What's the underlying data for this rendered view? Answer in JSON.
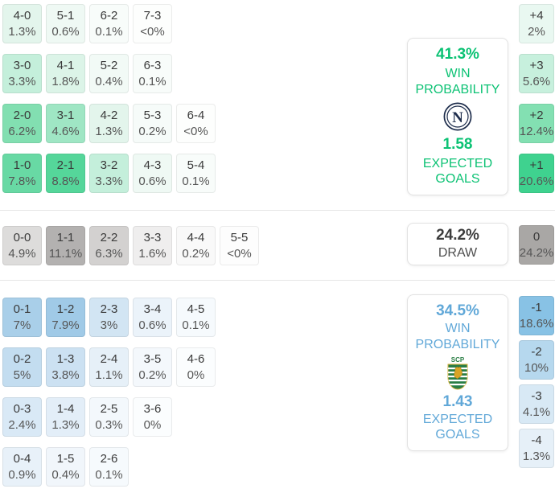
{
  "accents": {
    "home": "#0cc274",
    "away": "#61a8d8",
    "draw_value": "#3d3d3d",
    "draw_label": "#4e4e4e"
  },
  "crests": {
    "home": "napoli-crest",
    "away": "sporting-cp-crest"
  },
  "summary": {
    "home": {
      "team": "Napoli",
      "win_pct": "41.3%",
      "win_label": "WIN PROBABILITY",
      "expected_goals": "1.58",
      "expected_label": "EXPECTED GOALS"
    },
    "draw": {
      "pct": "24.2%",
      "label": "DRAW"
    },
    "away": {
      "team": "Sporting CP",
      "win_pct": "34.5%",
      "win_label": "WIN PROBABILITY",
      "expected_goals": "1.43",
      "expected_label": "EXPECTED GOALS"
    }
  },
  "chart_data": {
    "type": "heatmap",
    "title": "Correct score and goal-difference probabilities",
    "sections": {
      "home_win": {
        "team": "Napoli",
        "win_probability_pct": 41.3,
        "expected_goals": 1.58,
        "score_rows": [
          [
            {
              "label": "4-0",
              "pct": "1.3%",
              "color": "#e3f5ec"
            },
            {
              "label": "5-1",
              "pct": "0.6%",
              "color": "#eff9f4"
            },
            {
              "label": "6-2",
              "pct": "0.1%",
              "color": "#f8fcfa"
            },
            {
              "label": "7-3",
              "pct": "<0%",
              "color": "#fdfefd"
            }
          ],
          [
            {
              "label": "3-0",
              "pct": "3.3%",
              "color": "#c4efdb"
            },
            {
              "label": "4-1",
              "pct": "1.8%",
              "color": "#dcf4e8"
            },
            {
              "label": "5-2",
              "pct": "0.4%",
              "color": "#f2faf6"
            },
            {
              "label": "6-3",
              "pct": "0.1%",
              "color": "#f8fcfa"
            }
          ],
          [
            {
              "label": "2-0",
              "pct": "6.2%",
              "color": "#82dfb1"
            },
            {
              "label": "3-1",
              "pct": "4.6%",
              "color": "#9fe6c4"
            },
            {
              "label": "4-2",
              "pct": "1.3%",
              "color": "#e3f5ec"
            },
            {
              "label": "5-3",
              "pct": "0.2%",
              "color": "#f6fbf9"
            },
            {
              "label": "6-4",
              "pct": "<0%",
              "color": "#fdfefd"
            }
          ],
          [
            {
              "label": "1-0",
              "pct": "7.8%",
              "color": "#68d9a4"
            },
            {
              "label": "2-1",
              "pct": "8.8%",
              "color": "#55d69a"
            },
            {
              "label": "3-2",
              "pct": "3.3%",
              "color": "#c4efdb"
            },
            {
              "label": "4-3",
              "pct": "0.6%",
              "color": "#eff9f4"
            },
            {
              "label": "5-4",
              "pct": "0.1%",
              "color": "#f8fcfa"
            }
          ]
        ],
        "goal_diff": [
          {
            "label": "+4",
            "pct": "2%",
            "color": "#e9f8f1"
          },
          {
            "label": "+3",
            "pct": "5.6%",
            "color": "#c7f0dd"
          },
          {
            "label": "+2",
            "pct": "12.4%",
            "color": "#83e0b2"
          },
          {
            "label": "+1",
            "pct": "20.6%",
            "color": "#3fd28f"
          }
        ]
      },
      "draw": {
        "probability_pct": 24.2,
        "score_rows": [
          [
            {
              "label": "0-0",
              "pct": "4.9%",
              "color": "#dddcdb"
            },
            {
              "label": "1-1",
              "pct": "11.1%",
              "color": "#b3b1b0"
            },
            {
              "label": "2-2",
              "pct": "6.3%",
              "color": "#d3d1d0"
            },
            {
              "label": "3-3",
              "pct": "1.6%",
              "color": "#efeeee"
            },
            {
              "label": "4-4",
              "pct": "0.2%",
              "color": "#f9f9f9"
            },
            {
              "label": "5-5",
              "pct": "<0%",
              "color": "#fdfdfd"
            }
          ]
        ],
        "goal_diff": [
          {
            "label": "0",
            "pct": "24.2%",
            "color": "#a9a7a5"
          }
        ]
      },
      "away_win": {
        "team": "Sporting CP",
        "win_probability_pct": 34.5,
        "expected_goals": 1.43,
        "score_rows": [
          [
            {
              "label": "0-1",
              "pct": "7%",
              "color": "#a9cfe9"
            },
            {
              "label": "1-2",
              "pct": "7.9%",
              "color": "#a0cae7"
            },
            {
              "label": "2-3",
              "pct": "3%",
              "color": "#d2e5f3"
            },
            {
              "label": "3-4",
              "pct": "0.6%",
              "color": "#ebf3fa"
            },
            {
              "label": "4-5",
              "pct": "0.1%",
              "color": "#f6fafd"
            }
          ],
          [
            {
              "label": "0-2",
              "pct": "5%",
              "color": "#c3ddf0"
            },
            {
              "label": "1-3",
              "pct": "3.8%",
              "color": "#cce1f2"
            },
            {
              "label": "2-4",
              "pct": "1.1%",
              "color": "#e6f0f8"
            },
            {
              "label": "3-5",
              "pct": "0.2%",
              "color": "#f4f8fc"
            },
            {
              "label": "4-6",
              "pct": "0%",
              "color": "#fbfdfe"
            }
          ],
          [
            {
              "label": "0-3",
              "pct": "2.4%",
              "color": "#d9e9f6"
            },
            {
              "label": "1-4",
              "pct": "1.3%",
              "color": "#e3eef8"
            },
            {
              "label": "2-5",
              "pct": "0.3%",
              "color": "#f3f8fc"
            },
            {
              "label": "3-6",
              "pct": "0%",
              "color": "#fbfdfe"
            }
          ],
          [
            {
              "label": "0-4",
              "pct": "0.9%",
              "color": "#e8f1f9"
            },
            {
              "label": "1-5",
              "pct": "0.4%",
              "color": "#f1f6fb"
            },
            {
              "label": "2-6",
              "pct": "0.1%",
              "color": "#f6fafd"
            }
          ]
        ],
        "goal_diff": [
          {
            "label": "-1",
            "pct": "18.6%",
            "color": "#88c2e5"
          },
          {
            "label": "-2",
            "pct": "10%",
            "color": "#b6d8ee"
          },
          {
            "label": "-3",
            "pct": "4.1%",
            "color": "#d8e9f5"
          },
          {
            "label": "-4",
            "pct": "1.3%",
            "color": "#e6f0f8"
          }
        ]
      }
    }
  }
}
